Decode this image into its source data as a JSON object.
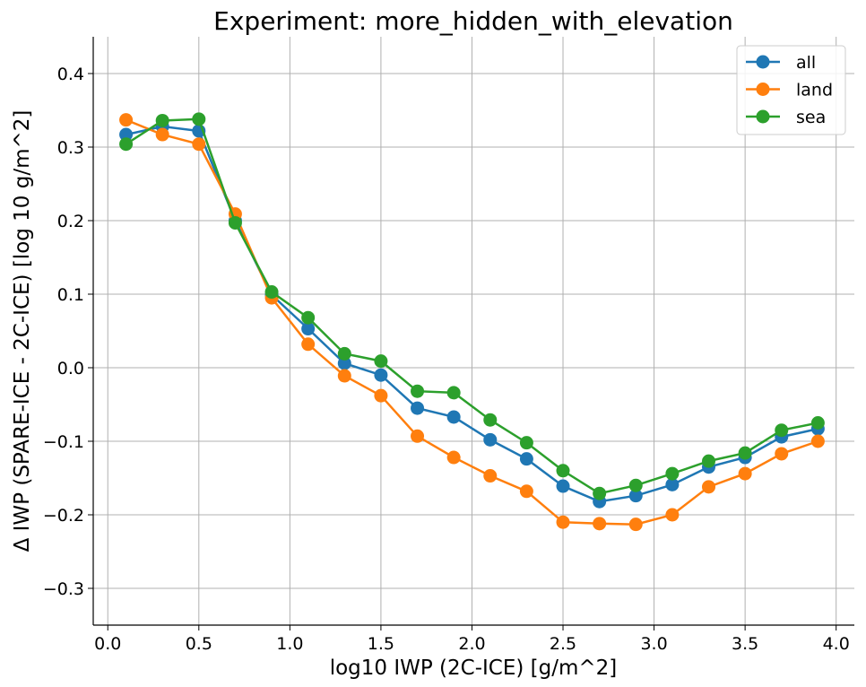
{
  "chart_data": {
    "type": "line",
    "title": "Experiment: more_hidden_with_elevation",
    "xlabel": "log10 IWP (2C-ICE) [g/m^2]",
    "ylabel": "Δ IWP (SPARE-ICE - 2C-ICE) [log 10 g/m^2]",
    "xlim": [
      -0.08,
      4.1
    ],
    "ylim": [
      -0.35,
      0.45
    ],
    "xticks": [
      0.0,
      0.5,
      1.0,
      1.5,
      2.0,
      2.5,
      3.0,
      3.5,
      4.0
    ],
    "xtick_labels": [
      "0.0",
      "0.5",
      "1.0",
      "1.5",
      "2.0",
      "2.5",
      "3.0",
      "3.5",
      "4.0"
    ],
    "yticks": [
      -0.3,
      -0.2,
      -0.1,
      0.0,
      0.1,
      0.2,
      0.3,
      0.4
    ],
    "ytick_labels": [
      "−0.3",
      "−0.2",
      "−0.1",
      "0.0",
      "0.1",
      "0.2",
      "0.3",
      "0.4"
    ],
    "grid": true,
    "legend_position": "top-right",
    "x": [
      0.1,
      0.3,
      0.5,
      0.7,
      0.9,
      1.1,
      1.3,
      1.5,
      1.7,
      1.9,
      2.1,
      2.3,
      2.5,
      2.7,
      2.9,
      3.1,
      3.3,
      3.5,
      3.7,
      3.9
    ],
    "series": [
      {
        "name": "all",
        "color": "#1f77b4",
        "values": [
          0.317,
          0.328,
          0.322,
          0.2,
          0.099,
          0.053,
          0.006,
          -0.01,
          -0.055,
          -0.067,
          -0.098,
          -0.124,
          -0.161,
          -0.182,
          -0.174,
          -0.159,
          -0.135,
          -0.122,
          -0.094,
          -0.083
        ]
      },
      {
        "name": "land",
        "color": "#ff7f0e",
        "values": [
          0.337,
          0.317,
          0.304,
          0.209,
          0.095,
          0.032,
          -0.011,
          -0.038,
          -0.093,
          -0.122,
          -0.147,
          -0.168,
          -0.21,
          -0.212,
          -0.213,
          -0.2,
          -0.162,
          -0.144,
          -0.117,
          -0.1
        ]
      },
      {
        "name": "sea",
        "color": "#2ca02c",
        "values": [
          0.304,
          0.336,
          0.338,
          0.197,
          0.103,
          0.068,
          0.019,
          0.009,
          -0.032,
          -0.034,
          -0.071,
          -0.102,
          -0.14,
          -0.171,
          -0.16,
          -0.144,
          -0.127,
          -0.116,
          -0.085,
          -0.075
        ]
      }
    ]
  }
}
